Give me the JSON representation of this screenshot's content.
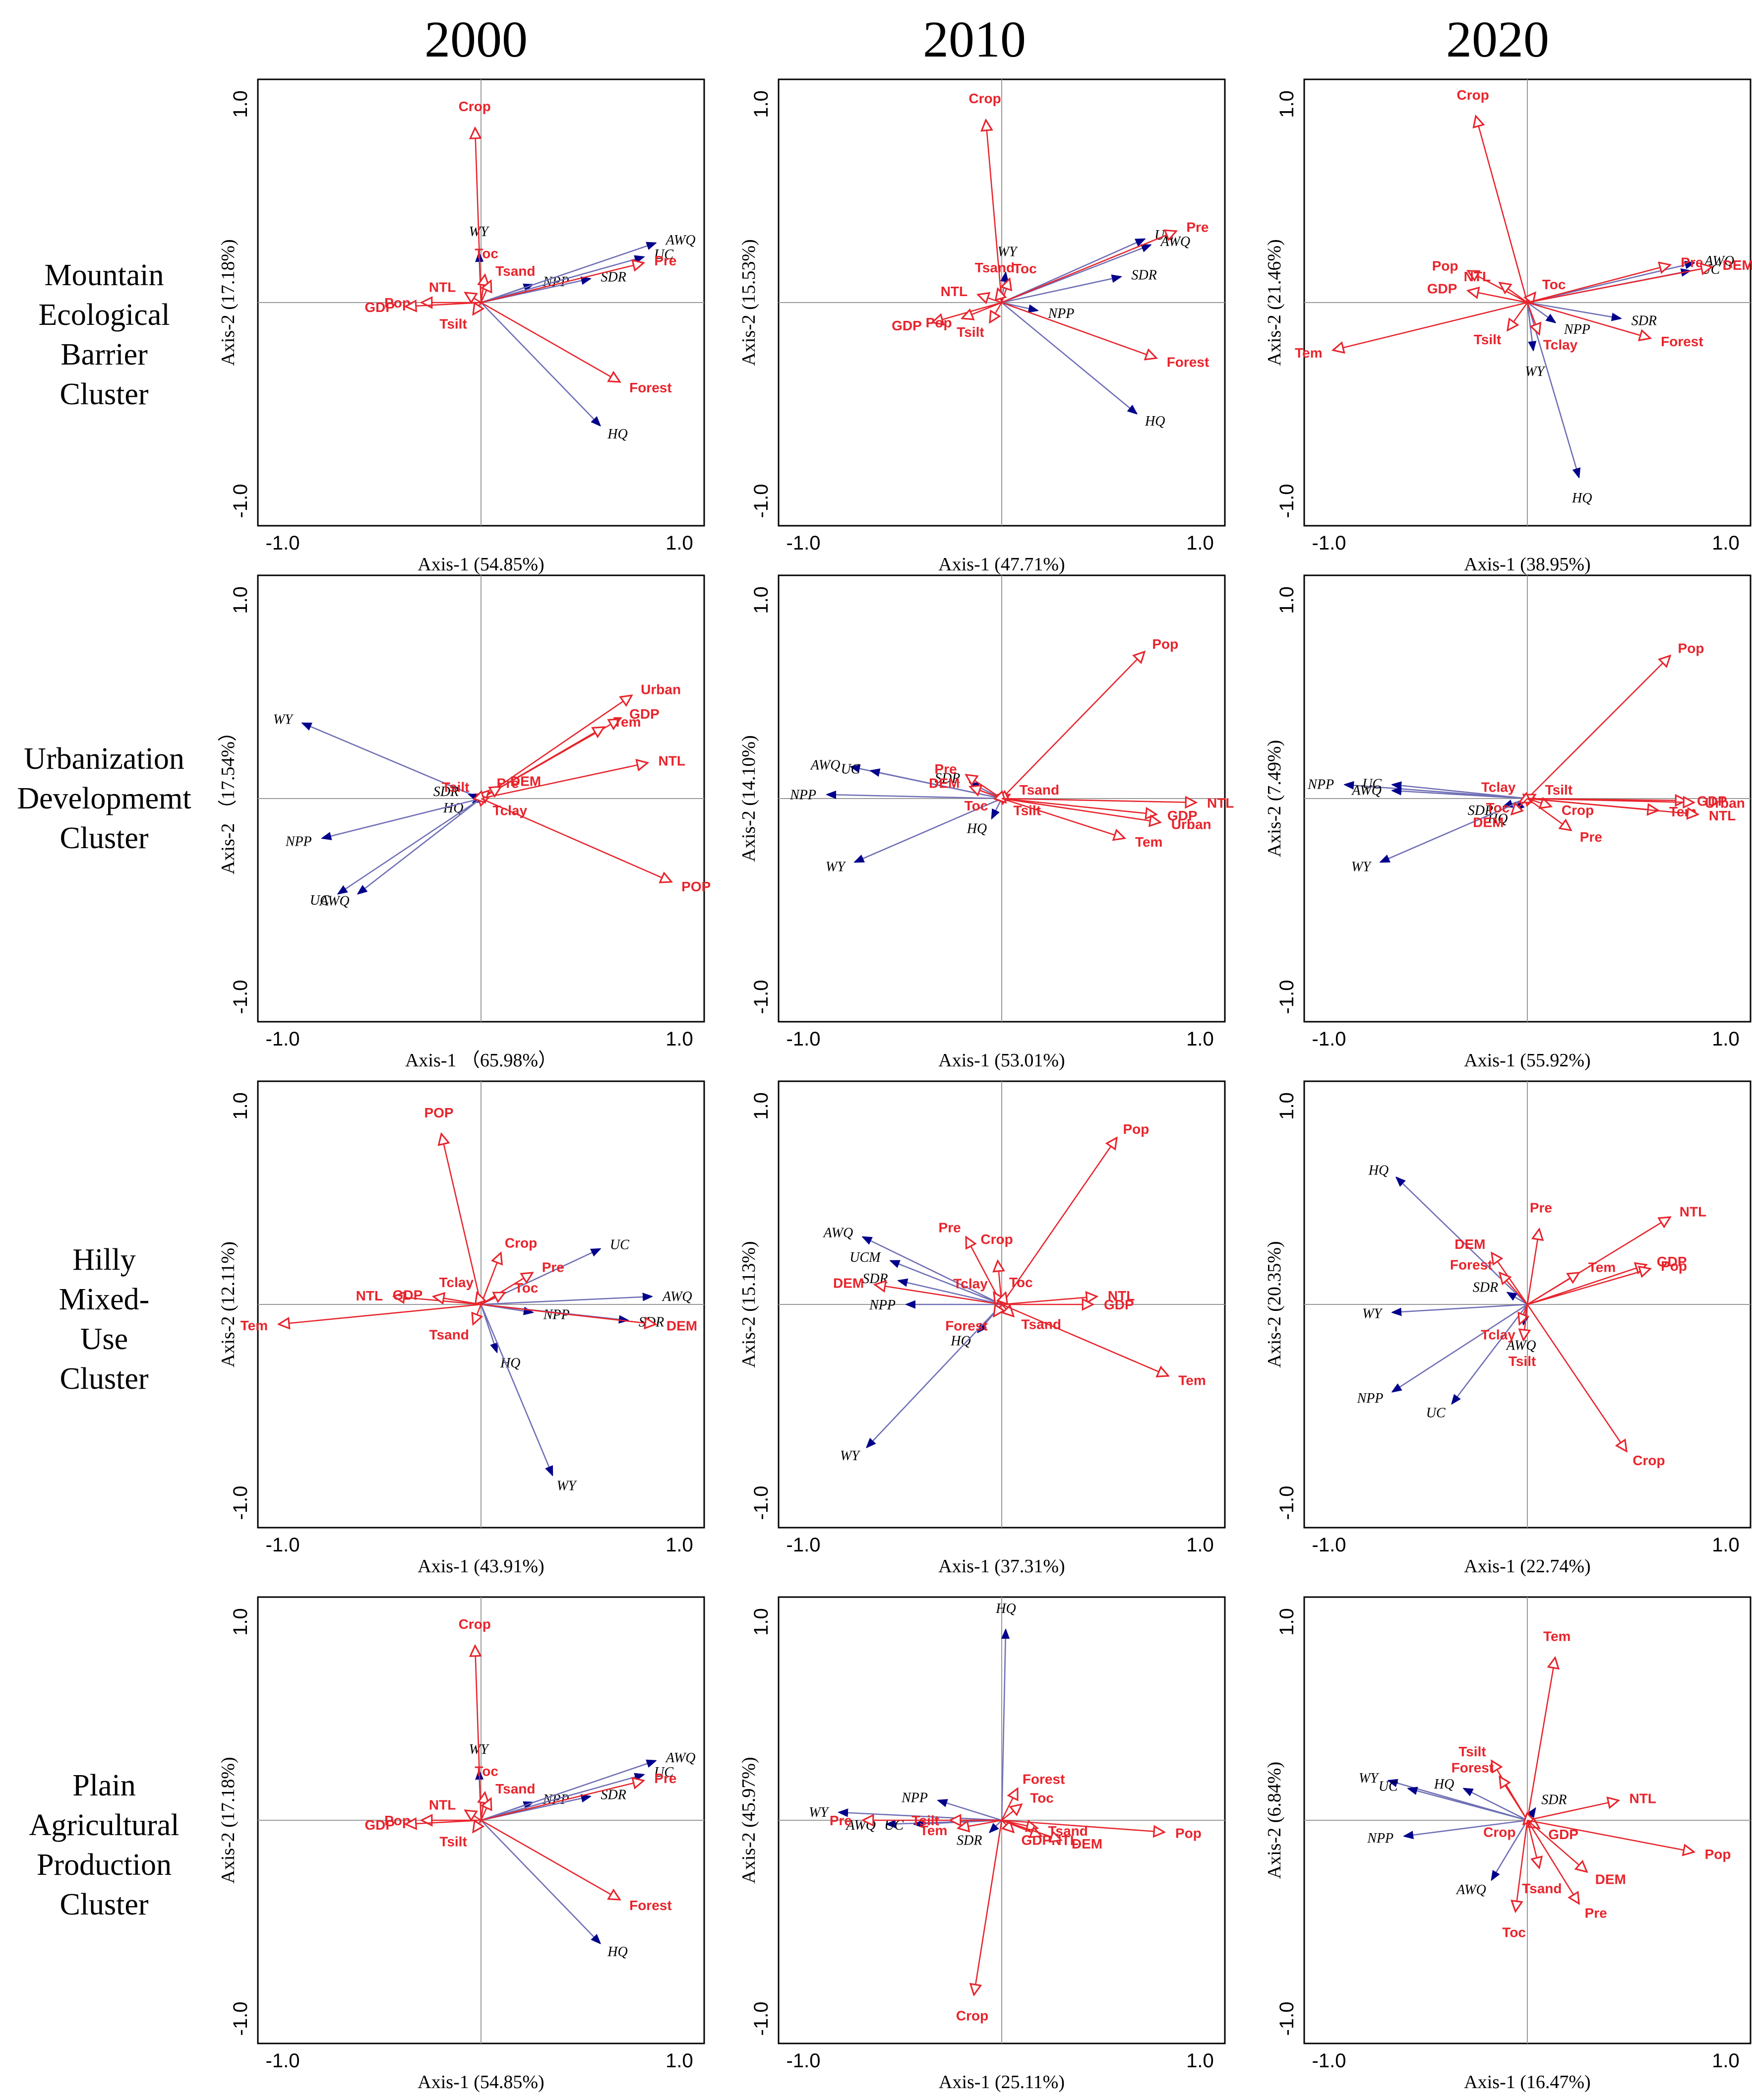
{
  "years": [
    "2000",
    "2010",
    "2020"
  ],
  "rows": [
    {
      "lines": [
        "Mountain",
        "Ecological",
        "Barrier",
        "Cluster"
      ]
    },
    {
      "lines": [
        "Urbanization",
        "Developmemt",
        "Cluster"
      ]
    },
    {
      "lines": [
        "Hilly",
        "Mixed-",
        "Use",
        "Cluster"
      ]
    },
    {
      "lines": [
        "Plain",
        "Agricultural",
        "Production",
        "Cluster"
      ]
    }
  ],
  "colors": {
    "response": "#e8242c",
    "service": "#6f6fb6",
    "service_head": "#00008b"
  },
  "chart_data": [
    {
      "type": "scatter",
      "title": "Mountain Ecological Barrier Cluster 2000",
      "xlabel": "Axis-1 (54.85%)",
      "ylabel": "Axis-2 (17.18%)",
      "xlim": [
        -1,
        1
      ],
      "ylim": [
        -1,
        1
      ],
      "response": [
        [
          "Crop",
          -0.03,
          0.88
        ],
        [
          "Toc",
          0.02,
          0.14
        ],
        [
          "Tsand",
          0.05,
          0.11
        ],
        [
          "NTL",
          -0.08,
          0.05
        ],
        [
          "Pop",
          -0.3,
          0.0
        ],
        [
          "GDP",
          -0.38,
          -0.02
        ],
        [
          "Tsilt",
          -0.04,
          -0.06
        ],
        [
          "Pre",
          0.82,
          0.2
        ],
        [
          "Forest",
          0.7,
          -0.4
        ]
      ],
      "services": [
        [
          "WY",
          -0.01,
          0.25
        ],
        [
          "NPP",
          0.26,
          0.09
        ],
        [
          "UC",
          0.82,
          0.23
        ],
        [
          "AWQ",
          0.88,
          0.3
        ],
        [
          "SDR",
          0.55,
          0.12
        ],
        [
          "HQ",
          0.6,
          -0.62
        ]
      ]
    },
    {
      "type": "scatter",
      "title": "Mountain Ecological Barrier Cluster 2010",
      "xlabel": "Axis-1 (47.71%)",
      "ylabel": "Axis-2 (15.53%)",
      "xlim": [
        -1,
        1
      ],
      "ylim": [
        -1,
        1
      ],
      "response": [
        [
          "Crop",
          -0.08,
          0.92
        ],
        [
          "Toc",
          0.04,
          0.12
        ],
        [
          "Tsand",
          -0.02,
          0.07
        ],
        [
          "NTL",
          -0.12,
          0.04
        ],
        [
          "GDP",
          -0.35,
          -0.1
        ],
        [
          "Pop",
          -0.2,
          -0.08
        ],
        [
          "Tsilt",
          -0.06,
          -0.1
        ],
        [
          "Pre",
          0.88,
          0.36
        ],
        [
          "Forest",
          0.78,
          -0.28
        ]
      ],
      "services": [
        [
          "WY",
          0.02,
          0.15
        ],
        [
          "NPP",
          0.18,
          -0.04
        ],
        [
          "UC",
          0.72,
          0.32
        ],
        [
          "AWQ",
          0.75,
          0.29
        ],
        [
          "SDR",
          0.6,
          0.13
        ],
        [
          "HQ",
          0.68,
          -0.56
        ]
      ]
    },
    {
      "type": "scatter",
      "title": "Mountain Ecological Barrier Cluster 2020",
      "xlabel": "Axis-1 (38.95%)",
      "ylabel": "Axis-2 (21.46%)",
      "xlim": [
        -1,
        1
      ],
      "ylim": [
        -1,
        1
      ],
      "response": [
        [
          "Crop",
          -0.26,
          0.94
        ],
        [
          "Pop",
          -0.3,
          0.16
        ],
        [
          "NTL",
          -0.14,
          0.1
        ],
        [
          "GDP",
          -0.3,
          0.06
        ],
        [
          "Toc",
          0.04,
          0.05
        ],
        [
          "Tsilt",
          -0.1,
          -0.14
        ],
        [
          "Tclay",
          0.06,
          -0.16
        ],
        [
          "Tem",
          -0.98,
          -0.24
        ],
        [
          "Pre",
          0.72,
          0.19
        ],
        [
          "DEM",
          0.93,
          0.18
        ],
        [
          "Forest",
          0.62,
          -0.18
        ]
      ],
      "services": [
        [
          "AWQ",
          0.84,
          0.2
        ],
        [
          "UC",
          0.82,
          0.16
        ],
        [
          "NPP",
          0.14,
          -0.1
        ],
        [
          "WY",
          0.03,
          -0.24
        ],
        [
          "SDR",
          0.47,
          -0.08
        ],
        [
          "HQ",
          0.26,
          -0.88
        ]
      ]
    },
    {
      "type": "scatter",
      "title": "Urbanization Developmemt Cluster 2000",
      "xlabel": "Axis-1 （65.98%）",
      "ylabel": "Axis-2 （17.54%）",
      "xlim": [
        -1,
        1
      ],
      "ylim": [
        -1,
        1
      ],
      "response": [
        [
          "Urban",
          0.76,
          0.52
        ],
        [
          "GDP",
          0.7,
          0.4
        ],
        [
          "Tem",
          0.62,
          0.36
        ],
        [
          "NTL",
          0.84,
          0.18
        ],
        [
          "DEM",
          0.1,
          0.06
        ],
        [
          "Pre",
          0.04,
          0.04
        ],
        [
          "Tsilt",
          -0.02,
          0.02
        ],
        [
          "Tclay",
          0.02,
          -0.02
        ],
        [
          "POP",
          0.96,
          -0.42
        ]
      ],
      "services": [
        [
          "WY",
          -0.9,
          0.38
        ],
        [
          "SDR",
          -0.06,
          0.02
        ],
        [
          "HQ",
          -0.04,
          -0.02
        ],
        [
          "NPP",
          -0.8,
          -0.2
        ],
        [
          "UC",
          -0.72,
          -0.48
        ],
        [
          "AWQ",
          -0.62,
          -0.48
        ]
      ]
    },
    {
      "type": "scatter",
      "title": "Urbanization Developmemt Cluster 2010",
      "xlabel": "Axis-1 (53.01%)",
      "ylabel": "Axis-2 (14.10%)",
      "xlim": [
        -1,
        1
      ],
      "ylim": [
        -1,
        1
      ],
      "response": [
        [
          "Pop",
          0.72,
          0.74
        ],
        [
          "Pre",
          -0.18,
          0.12
        ],
        [
          "DEM",
          -0.16,
          0.06
        ],
        [
          "Tsand",
          0.04,
          0.02
        ],
        [
          "Toc",
          -0.02,
          -0.01
        ],
        [
          "Tsilt",
          0.02,
          -0.02
        ],
        [
          "NTL",
          0.98,
          -0.02
        ],
        [
          "GDP",
          0.78,
          -0.08
        ],
        [
          "Urban",
          0.8,
          -0.12
        ],
        [
          "Tem",
          0.62,
          -0.2
        ]
      ],
      "services": [
        [
          "AWQ",
          -0.76,
          0.16
        ],
        [
          "UC",
          -0.66,
          0.14
        ],
        [
          "SDR",
          -0.16,
          0.08
        ],
        [
          "NPP",
          -0.88,
          0.02
        ],
        [
          "HQ",
          -0.05,
          -0.1
        ],
        [
          "WY",
          -0.74,
          -0.32
        ]
      ]
    },
    {
      "type": "scatter",
      "title": "Urbanization Developmemt Cluster 2020",
      "xlabel": "Axis-1 (55.92%)",
      "ylabel": "Axis-2 (7.49%)",
      "xlim": [
        -1,
        1
      ],
      "ylim": [
        -1,
        1
      ],
      "response": [
        [
          "Pop",
          0.72,
          0.72
        ],
        [
          "Tclay",
          -0.02,
          0.02
        ],
        [
          "Tsilt",
          0.04,
          0.02
        ],
        [
          "Toc",
          -0.04,
          -0.02
        ],
        [
          "Crop",
          0.12,
          -0.04
        ],
        [
          "DEM",
          -0.08,
          -0.08
        ],
        [
          "GDP",
          0.8,
          -0.01
        ],
        [
          "Urban",
          0.84,
          -0.02
        ],
        [
          "Tem",
          0.66,
          -0.06
        ],
        [
          "NTL",
          0.86,
          -0.08
        ],
        [
          "Pre",
          0.22,
          -0.16
        ]
      ],
      "services": [
        [
          "NPP",
          -0.92,
          0.07
        ],
        [
          "UC",
          -0.68,
          0.07
        ],
        [
          "AWQ",
          -0.68,
          0.04
        ],
        [
          "SDR",
          -0.12,
          -0.04
        ],
        [
          "HQ",
          -0.06,
          -0.06
        ],
        [
          "WY",
          -0.74,
          -0.32
        ]
      ]
    },
    {
      "type": "scatter",
      "title": "Hilly Mixed-Use Cluster 2000",
      "xlabel": "Axis-1 (43.91%)",
      "ylabel": "Axis-2 (12.11%)",
      "xlim": [
        -1,
        1
      ],
      "ylim": [
        -1,
        1
      ],
      "response": [
        [
          "POP",
          -0.2,
          0.86
        ],
        [
          "Crop",
          0.1,
          0.26
        ],
        [
          "Pre",
          0.26,
          0.16
        ],
        [
          "NTL",
          -0.44,
          0.04
        ],
        [
          "GDP",
          -0.24,
          0.04
        ],
        [
          "Tclay",
          -0.02,
          0.06
        ],
        [
          "Toc",
          0.12,
          0.06
        ],
        [
          "Tsand",
          -0.04,
          -0.1
        ],
        [
          "Tem",
          -1.02,
          -0.1
        ],
        [
          "DEM",
          0.88,
          -0.1
        ]
      ],
      "services": [
        [
          "UC",
          0.6,
          0.28
        ],
        [
          "AWQ",
          0.86,
          0.04
        ],
        [
          "NPP",
          0.26,
          -0.04
        ],
        [
          "SDR",
          0.74,
          -0.08
        ],
        [
          "HQ",
          0.08,
          -0.24
        ],
        [
          "WY",
          0.36,
          -0.86
        ]
      ]
    },
    {
      "type": "scatter",
      "title": "Hilly Mixed-Use Cluster 2010",
      "xlabel": "Axis-1 (37.31%)",
      "ylabel": "Axis-2 (15.13%)",
      "xlim": [
        -1,
        1
      ],
      "ylim": [
        -1,
        1
      ],
      "response": [
        [
          "Pop",
          0.58,
          0.84
        ],
        [
          "Pre",
          -0.18,
          0.34
        ],
        [
          "Crop",
          -0.02,
          0.22
        ],
        [
          "Tclay",
          -0.04,
          0.06
        ],
        [
          "Toc",
          0.02,
          0.06
        ],
        [
          "DEM",
          -0.64,
          0.1
        ],
        [
          "NTL",
          0.48,
          0.04
        ],
        [
          "GDP",
          0.46,
          0.0
        ],
        [
          "Forest",
          -0.04,
          -0.06
        ],
        [
          "Tsand",
          0.06,
          -0.06
        ],
        [
          "Tem",
          0.84,
          -0.36
        ]
      ],
      "services": [
        [
          "AWQ",
          -0.7,
          0.34
        ],
        [
          "UCM",
          -0.56,
          0.22
        ],
        [
          "SDR",
          -0.52,
          0.12
        ],
        [
          "NPP",
          -0.48,
          0.0
        ],
        [
          "HQ",
          -0.12,
          -0.14
        ],
        [
          "WY",
          -0.68,
          -0.72
        ]
      ]
    },
    {
      "type": "scatter",
      "title": "Hilly Mixed-Use Cluster 2020",
      "xlabel": "Axis-1 (22.74%)",
      "ylabel": "Axis-2 (20.35%)",
      "xlim": [
        -1,
        1
      ],
      "ylim": [
        -1,
        1
      ],
      "response": [
        [
          "NTL",
          0.72,
          0.44
        ],
        [
          "Pre",
          0.06,
          0.38
        ],
        [
          "DEM",
          -0.18,
          0.26
        ],
        [
          "GDP",
          0.6,
          0.2
        ],
        [
          "Pop",
          0.62,
          0.18
        ],
        [
          "Tem",
          0.26,
          0.16
        ],
        [
          "Forest",
          -0.14,
          0.16
        ],
        [
          "Tclay",
          -0.04,
          -0.1
        ],
        [
          "Tsilt",
          -0.02,
          -0.18
        ],
        [
          "Crop",
          0.5,
          -0.74
        ]
      ],
      "services": [
        [
          "HQ",
          -0.66,
          0.64
        ],
        [
          "SDR",
          -0.1,
          0.06
        ],
        [
          "WY",
          -0.68,
          -0.04
        ],
        [
          "AWQ",
          -0.02,
          -0.1
        ],
        [
          "NPP",
          -0.68,
          -0.44
        ],
        [
          "UC",
          -0.38,
          -0.5
        ]
      ]
    },
    {
      "type": "scatter",
      "title": "Plain Agricultural Production Cluster 2000",
      "xlabel": "Axis-1 (54.85%)",
      "ylabel": "Axis-2 (17.18%)",
      "xlim": [
        -1,
        1
      ],
      "ylim": [
        -1,
        1
      ],
      "response": [
        [
          "Crop",
          -0.03,
          0.88
        ],
        [
          "Toc",
          0.02,
          0.14
        ],
        [
          "Tsand",
          0.05,
          0.11
        ],
        [
          "NTL",
          -0.08,
          0.05
        ],
        [
          "Pop",
          -0.3,
          0.0
        ],
        [
          "GDP",
          -0.38,
          -0.02
        ],
        [
          "Tsilt",
          -0.04,
          -0.06
        ],
        [
          "Pre",
          0.82,
          0.2
        ],
        [
          "Forest",
          0.7,
          -0.4
        ]
      ],
      "services": [
        [
          "WY",
          -0.01,
          0.25
        ],
        [
          "NPP",
          0.26,
          0.09
        ],
        [
          "UC",
          0.82,
          0.23
        ],
        [
          "AWQ",
          0.88,
          0.3
        ],
        [
          "SDR",
          0.55,
          0.12
        ],
        [
          "HQ",
          0.6,
          -0.62
        ]
      ]
    },
    {
      "type": "scatter",
      "title": "Plain Agricultural Production Cluster 2010",
      "xlabel": "Axis-1 (25.11%)",
      "ylabel": "Axis-2 (45.97%)",
      "xlim": [
        -1,
        1
      ],
      "ylim": [
        -1,
        1
      ],
      "response": [
        [
          "Forest",
          0.08,
          0.16
        ],
        [
          "Toc",
          0.1,
          0.08
        ],
        [
          "Pre",
          -0.7,
          0.0
        ],
        [
          "Tsilt",
          -0.26,
          0.0
        ],
        [
          "Tem",
          -0.22,
          -0.04
        ],
        [
          "Tsand",
          0.18,
          -0.04
        ],
        [
          "GDP",
          0.06,
          -0.06
        ],
        [
          "NTL",
          0.2,
          -0.08
        ],
        [
          "DEM",
          0.3,
          -0.1
        ],
        [
          "Pop",
          0.82,
          -0.06
        ],
        [
          "Crop",
          -0.14,
          -0.88
        ]
      ],
      "services": [
        [
          "HQ",
          0.02,
          0.96
        ],
        [
          "NPP",
          -0.32,
          0.1
        ],
        [
          "WY",
          -0.82,
          0.04
        ],
        [
          "AWQ",
          -0.58,
          -0.02
        ],
        [
          "UC",
          -0.44,
          -0.02
        ],
        [
          "SDR",
          -0.06,
          -0.06
        ]
      ]
    },
    {
      "type": "scatter",
      "title": "Plain Agricultural Production Cluster 2020",
      "xlabel": "Axis-1 (16.47%)",
      "ylabel": "Axis-2 (6.84%)",
      "xlim": [
        -1,
        1
      ],
      "ylim": [
        -1,
        1
      ],
      "response": [
        [
          "Tem",
          0.14,
          0.82
        ],
        [
          "Tsilt",
          -0.18,
          0.3
        ],
        [
          "Forest",
          -0.14,
          0.22
        ],
        [
          "NTL",
          0.46,
          0.1
        ],
        [
          "Crop",
          -0.02,
          -0.02
        ],
        [
          "GDP",
          0.06,
          -0.04
        ],
        [
          "Pop",
          0.84,
          -0.16
        ],
        [
          "Tsand",
          0.06,
          -0.24
        ],
        [
          "DEM",
          0.3,
          -0.26
        ],
        [
          "Pre",
          0.26,
          -0.42
        ],
        [
          "Toc",
          -0.06,
          -0.46
        ]
      ],
      "services": [
        [
          "WY",
          -0.7,
          0.2
        ],
        [
          "UC",
          -0.6,
          0.16
        ],
        [
          "HQ",
          -0.32,
          0.16
        ],
        [
          "SDR",
          0.04,
          0.06
        ],
        [
          "NPP",
          -0.62,
          -0.08
        ],
        [
          "AWQ",
          -0.18,
          -0.3
        ]
      ]
    }
  ]
}
